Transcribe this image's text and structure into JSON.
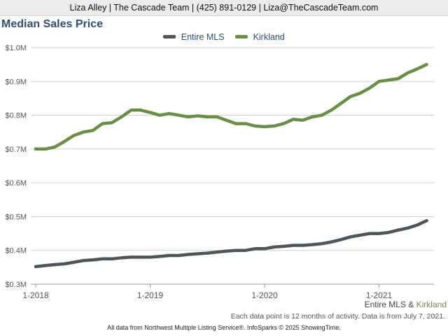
{
  "header": {
    "contact_line": "Liza Alley | The Cascade Team | (425) 891-0129 | Liza@TheCascadeTeam.com"
  },
  "chart_data": {
    "type": "line",
    "title": "Median Sales Price",
    "xlabel": "",
    "ylabel": "",
    "ylim": [
      0.3,
      1.0
    ],
    "y_unit": "$M",
    "y_ticks": [
      "$0.3M",
      "$0.4M",
      "$0.5M",
      "$0.6M",
      "$0.7M",
      "$0.8M",
      "$0.9M",
      "$1.0M"
    ],
    "x_ticks": [
      "1-2018",
      "1-2019",
      "1-2020",
      "1-2021"
    ],
    "grid": "horizontal",
    "legend_position": "top-center",
    "x": [
      "1-2018",
      "2-2018",
      "3-2018",
      "4-2018",
      "5-2018",
      "6-2018",
      "7-2018",
      "8-2018",
      "9-2018",
      "10-2018",
      "11-2018",
      "12-2018",
      "1-2019",
      "2-2019",
      "3-2019",
      "4-2019",
      "5-2019",
      "6-2019",
      "7-2019",
      "8-2019",
      "9-2019",
      "10-2019",
      "11-2019",
      "12-2019",
      "1-2020",
      "2-2020",
      "3-2020",
      "4-2020",
      "5-2020",
      "6-2020",
      "7-2020",
      "8-2020",
      "9-2020",
      "10-2020",
      "11-2020",
      "12-2020",
      "1-2021",
      "2-2021",
      "3-2021",
      "4-2021",
      "5-2021",
      "6-2021"
    ],
    "series": [
      {
        "name": "Entire MLS",
        "color": "#4f5458",
        "values": [
          0.352,
          0.355,
          0.358,
          0.36,
          0.365,
          0.37,
          0.372,
          0.375,
          0.375,
          0.378,
          0.38,
          0.38,
          0.38,
          0.382,
          0.385,
          0.385,
          0.388,
          0.39,
          0.392,
          0.395,
          0.398,
          0.4,
          0.4,
          0.405,
          0.405,
          0.41,
          0.412,
          0.415,
          0.415,
          0.417,
          0.42,
          0.425,
          0.432,
          0.44,
          0.445,
          0.45,
          0.45,
          0.453,
          0.46,
          0.466,
          0.475,
          0.488
        ]
      },
      {
        "name": "Kirkland",
        "color": "#6a8e46",
        "values": [
          0.7,
          0.7,
          0.706,
          0.722,
          0.74,
          0.75,
          0.755,
          0.775,
          0.778,
          0.795,
          0.815,
          0.815,
          0.808,
          0.8,
          0.805,
          0.8,
          0.795,
          0.798,
          0.795,
          0.795,
          0.785,
          0.775,
          0.775,
          0.768,
          0.766,
          0.768,
          0.775,
          0.788,
          0.785,
          0.795,
          0.8,
          0.815,
          0.835,
          0.855,
          0.865,
          0.88,
          0.9,
          0.904,
          0.908,
          0.925,
          0.937,
          0.95
        ]
      }
    ]
  },
  "footer": {
    "series_label_1": "Entire MLS",
    "series_joiner": " & ",
    "series_label_2": "Kirkland",
    "data_note": "Each data point is 12 months of activity. Data is from July 7, 2021.",
    "source": "All data from Northwest Multiple Listing Service®. InfoSparks © 2025 ShowingTime."
  }
}
